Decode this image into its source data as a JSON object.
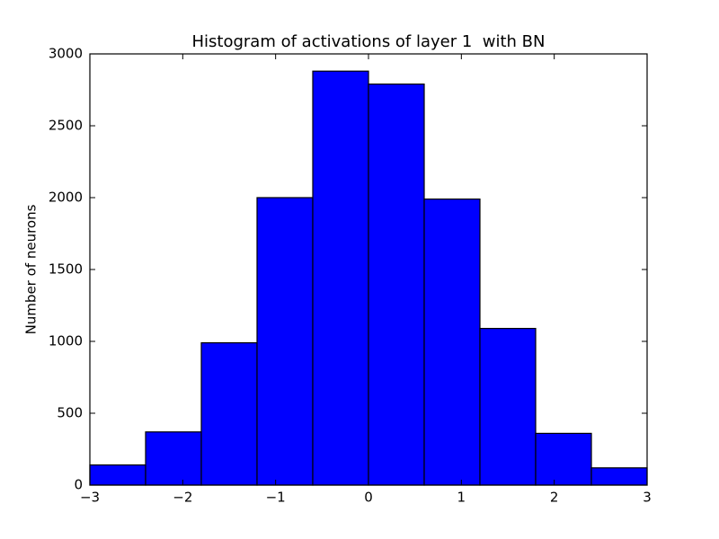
{
  "chart_data": {
    "type": "histogram",
    "title": "Histogram of activations of layer 1  with BN",
    "ylabel": "Number of neurons",
    "bins": [
      -3,
      -2.4,
      -1.8,
      -1.2,
      -0.6,
      0,
      0.6,
      1.2,
      1.8,
      2.4,
      3
    ],
    "values": [
      140,
      370,
      990,
      2000,
      2880,
      2790,
      1990,
      1090,
      360,
      120
    ],
    "color": "#0000ff",
    "xlim": [
      -3,
      3
    ],
    "xticks": [
      {
        "value": -3,
        "label": "−3"
      },
      {
        "value": -2,
        "label": "−2"
      },
      {
        "value": -1,
        "label": "−1"
      },
      0,
      1,
      2,
      3
    ],
    "ylim": [
      0,
      3000
    ],
    "yticks": [
      0,
      500,
      1000,
      1500,
      2000,
      2500,
      3000
    ],
    "grid": false
  }
}
